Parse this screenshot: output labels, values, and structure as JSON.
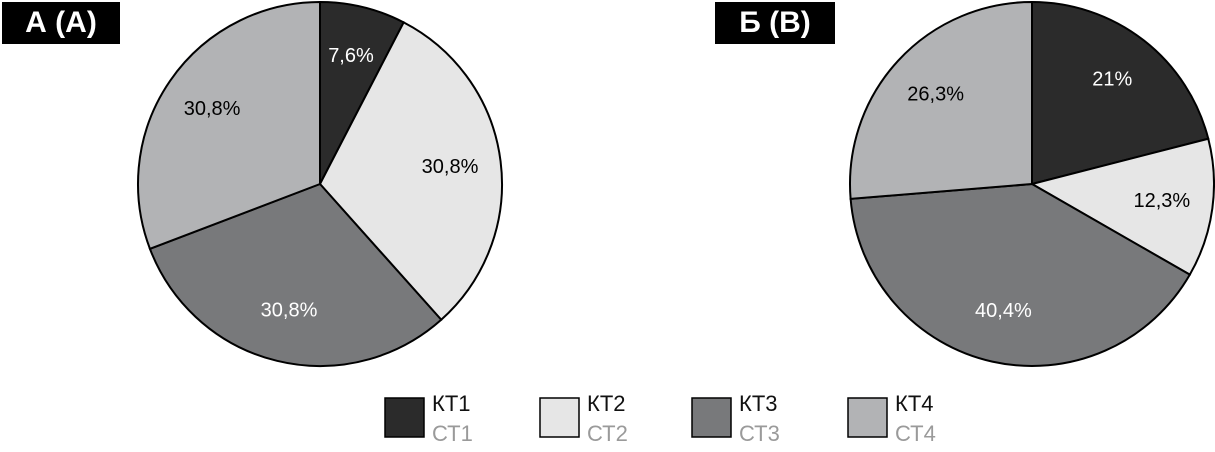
{
  "chart_data": [
    {
      "type": "pie",
      "title": "А (A)",
      "values": [
        7.6,
        30.8,
        30.8,
        30.8
      ],
      "value_labels": [
        "7,6%",
        "30,8%",
        "30,8%",
        "30,8%"
      ]
    },
    {
      "type": "pie",
      "title": "Б (B)",
      "values": [
        21,
        12.3,
        40.4,
        26.3
      ],
      "value_labels": [
        "21%",
        "12,3%",
        "40,4%",
        "26,3%"
      ]
    }
  ],
  "legend": {
    "items": [
      {
        "label": "КТ1",
        "sublabel": "СТ1",
        "color": "#2b2b2b"
      },
      {
        "label": "КТ2",
        "sublabel": "СТ2",
        "color": "#e6e6e6"
      },
      {
        "label": "КТ3",
        "sublabel": "СТ3",
        "color": "#78797b"
      },
      {
        "label": "КТ4",
        "sublabel": "СТ4",
        "color": "#b2b3b5"
      }
    ]
  }
}
